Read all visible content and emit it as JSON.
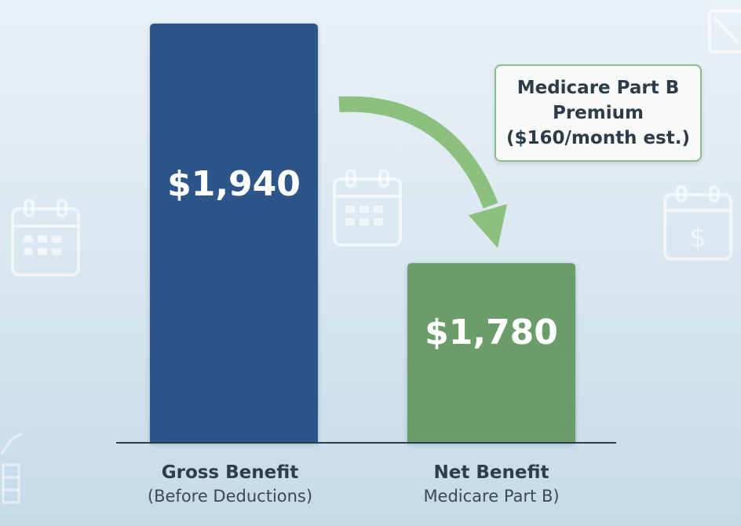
{
  "chart_data": {
    "type": "bar",
    "categories": [
      {
        "title": "Gross Benefit",
        "subtitle": "(Before Deductions)"
      },
      {
        "title": "Net Benefit",
        "subtitle": "Medicare Part B)"
      }
    ],
    "values": [
      1940,
      1780
    ],
    "value_labels": [
      "$1,940",
      "$1,780"
    ],
    "bar_colors": [
      "#2d5588",
      "#6a9d69"
    ],
    "ylim": [
      1660,
      1940
    ],
    "annotation": "Medicare Part B\nPremium\n($160/month est.)",
    "arrow_color": "#8cc07e",
    "grid": false
  },
  "background_icons": [
    "calendar-icon",
    "calendar-icon",
    "calendar-dollar-icon",
    "chart-icon",
    "expand-icon"
  ]
}
